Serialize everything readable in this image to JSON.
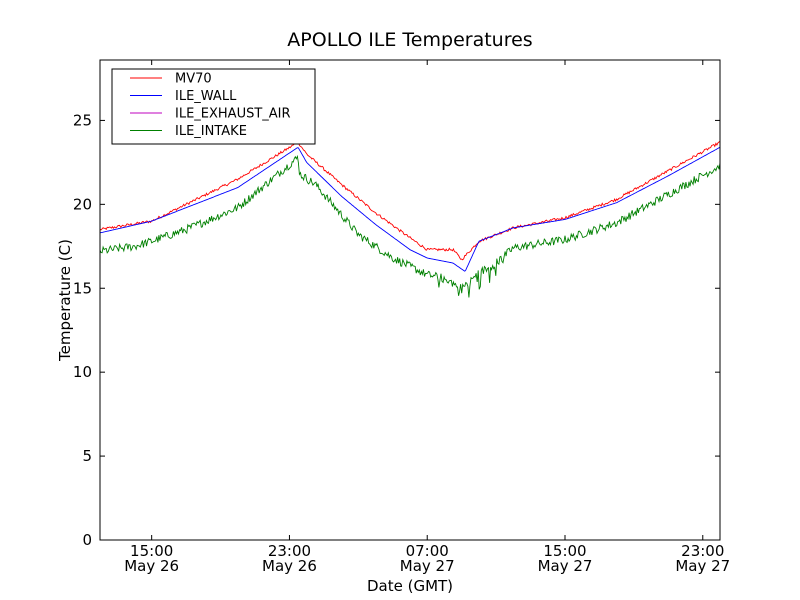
{
  "chart_data": {
    "type": "line",
    "title": "APOLLO ILE Temperatures",
    "xlabel": "Date (GMT)",
    "ylabel": "Temperature (C)",
    "xlim": [
      12.0,
      48.0
    ],
    "ylim": [
      0,
      28.6
    ],
    "x_unit": "hours since May 26 00:00 GMT",
    "yticks": [
      0,
      5,
      10,
      15,
      20,
      25
    ],
    "xticks": [
      {
        "x": 15,
        "line1": "15:00",
        "line2": "May 26"
      },
      {
        "x": 23,
        "line1": "23:00",
        "line2": "May 26"
      },
      {
        "x": 31,
        "line1": "07:00",
        "line2": "May 27"
      },
      {
        "x": 39,
        "line1": "15:00",
        "line2": "May 27"
      },
      {
        "x": 47,
        "line1": "23:00",
        "line2": "May 27"
      }
    ],
    "legend_position": "top-left",
    "grid": false,
    "series": [
      {
        "name": "MV70",
        "color": "#ff0000",
        "noise": 0.08,
        "x": [
          12.0,
          15.0,
          17.0,
          20.0,
          23.5,
          24.0,
          26.0,
          28.0,
          30.0,
          31.0,
          32.5,
          33.0,
          34.0,
          36.0,
          39.0,
          42.0,
          45.0,
          48.0
        ],
        "y": [
          18.5,
          19.0,
          20.0,
          21.5,
          23.7,
          23.0,
          21.2,
          19.5,
          18.0,
          17.3,
          17.3,
          16.7,
          17.8,
          18.6,
          19.2,
          20.3,
          22.0,
          23.7
        ]
      },
      {
        "name": "ILE_WALL",
        "color": "#0000ff",
        "noise": 0.0,
        "x": [
          12.0,
          15.0,
          17.0,
          20.0,
          23.5,
          24.0,
          26.0,
          28.0,
          30.0,
          31.0,
          32.5,
          33.2,
          34.0,
          36.0,
          39.0,
          42.0,
          45.0,
          48.0
        ],
        "y": [
          18.3,
          19.0,
          19.8,
          21.0,
          23.4,
          22.5,
          20.5,
          18.8,
          17.3,
          16.8,
          16.5,
          16.0,
          17.8,
          18.6,
          19.1,
          20.1,
          21.7,
          23.4
        ]
      },
      {
        "name": "ILE_EXHAUST_AIR",
        "color": "#bf00bf",
        "noise": 0.0,
        "x": [],
        "y": []
      },
      {
        "name": "ILE_INTAKE",
        "color": "#008000",
        "noise": 0.25,
        "x": [
          12.0,
          14.0,
          15.0,
          17.0,
          20.0,
          23.5,
          23.6,
          24.5,
          25.5,
          27.0,
          29.0,
          31.0,
          32.0,
          33.0,
          34.0,
          35.0,
          36.0,
          39.0,
          42.0,
          45.0,
          48.0
        ],
        "y": [
          17.2,
          17.5,
          17.8,
          18.5,
          19.8,
          22.8,
          21.8,
          21.2,
          20.0,
          18.2,
          16.8,
          15.8,
          15.6,
          15.0,
          15.9,
          16.5,
          17.4,
          17.9,
          18.9,
          20.6,
          22.3
        ]
      }
    ]
  }
}
